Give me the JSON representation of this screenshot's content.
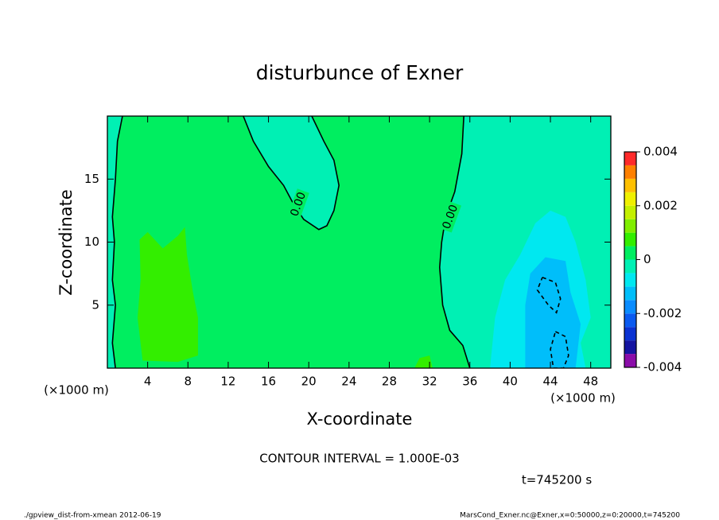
{
  "chart_data": {
    "type": "contour",
    "title": "disturbunce of Exner",
    "xlabel": "X-coordinate",
    "ylabel": "Z-coordinate",
    "x_unit_label": "(×1000 m)",
    "y_unit_label": "(×1000 m)",
    "xlim": [
      0,
      50
    ],
    "ylim": [
      0,
      20
    ],
    "xticks": [
      4,
      8,
      12,
      16,
      20,
      24,
      28,
      32,
      36,
      40,
      44,
      48
    ],
    "yticks": [
      5,
      10,
      15
    ],
    "colorbar": {
      "levels": [
        -0.004,
        -0.0035,
        -0.003,
        -0.0025,
        -0.002,
        -0.0015,
        -0.001,
        -0.0005,
        0,
        0.0005,
        0.001,
        0.0015,
        0.002,
        0.0025,
        0.003,
        0.0035,
        0.004
      ],
      "colors": [
        "#8a0ca8",
        "#1414a0",
        "#0a32d2",
        "#0a5af0",
        "#0a8cff",
        "#00befa",
        "#00e8f0",
        "#00f0b4",
        "#00ee60",
        "#33ee00",
        "#80ee00",
        "#c4f000",
        "#f0f000",
        "#ffc000",
        "#ff8000",
        "#ff2a2a",
        "#ff9a9a"
      ],
      "ticks": [
        -0.004,
        -0.002,
        0,
        0.002,
        0.004
      ]
    },
    "regions": [
      {
        "value": 0,
        "x": [
          0,
          50,
          50,
          0
        ],
        "y": [
          0,
          0,
          20,
          20
        ]
      },
      {
        "value": -0.0005,
        "x": [
          0,
          1.5,
          1,
          0.8,
          0.5,
          0.7,
          0.5,
          0.8,
          0.5,
          0.8,
          0
        ],
        "y": [
          20,
          20,
          18,
          15,
          12,
          10,
          7,
          5,
          2,
          0,
          0
        ]
      },
      {
        "value": -0.0005,
        "x": [
          13.5,
          14.5,
          16,
          17.5,
          18.5,
          19.5,
          21,
          21.8,
          22.5,
          23,
          22.5,
          21.5,
          20.3
        ],
        "y": [
          20,
          18,
          16,
          14.5,
          13,
          11.8,
          11,
          11.3,
          12.5,
          14.5,
          16.5,
          18,
          20
        ]
      },
      {
        "value": -0.0005,
        "x": [
          35.4,
          35.2,
          34.5,
          33.6,
          33.2,
          33,
          33.3,
          34,
          35.3,
          36,
          50,
          50
        ],
        "y": [
          20,
          17,
          14,
          12,
          10,
          8,
          5,
          3,
          1.8,
          0,
          0,
          20
        ]
      },
      {
        "value": -0.001,
        "x": [
          38,
          38.5,
          39.5,
          41,
          42.5,
          44,
          45.5,
          46.5,
          47.5,
          48,
          47,
          47.5
        ],
        "y": [
          0,
          4,
          7,
          9,
          11.5,
          12.5,
          12,
          10,
          7,
          4,
          2,
          0
        ]
      },
      {
        "value": -0.0015,
        "x": [
          41.5,
          41.5,
          42,
          43.5,
          45.5,
          46,
          47,
          46.5
        ],
        "y": [
          0,
          5,
          7.5,
          8.8,
          8.5,
          6,
          3.5,
          0
        ]
      },
      {
        "value": 0.0005,
        "x": [
          3.5,
          3,
          3.3,
          3.2,
          4,
          5.5,
          7,
          7.7,
          7.9,
          8.5,
          9,
          9,
          7
        ],
        "y": [
          0.6,
          4,
          7,
          10.2,
          10.8,
          9.5,
          10.5,
          11.2,
          9,
          6,
          4,
          1,
          0.5
        ]
      },
      {
        "value": 0.0005,
        "x": [
          30.5,
          31,
          32,
          32.3
        ],
        "y": [
          0,
          0.8,
          1,
          0
        ]
      }
    ],
    "contours": [
      {
        "level": 0,
        "x": [
          1.5,
          1,
          0.8,
          0.5,
          0.7,
          0.5,
          0.8,
          0.5,
          0.8
        ],
        "y": [
          20,
          18,
          15,
          12,
          10,
          7,
          5,
          2,
          0
        ]
      },
      {
        "level": 0,
        "label": "0.00",
        "x": [
          13.5,
          14.5,
          16,
          17.5,
          18.5,
          19.5,
          21,
          21.8,
          22.5,
          23,
          22.5,
          21.5,
          20.3
        ],
        "y": [
          20,
          18,
          16,
          14.5,
          13,
          11.8,
          11,
          11.3,
          12.5,
          14.5,
          16.5,
          18,
          20
        ]
      },
      {
        "level": 0,
        "label": "0.00",
        "x": [
          35.4,
          35.2,
          34.5,
          33.6,
          33.2,
          33,
          33.3,
          34,
          35.3,
          36
        ],
        "y": [
          20,
          17,
          14,
          12,
          10,
          8,
          5,
          3,
          1.8,
          0
        ]
      },
      {
        "level": -0.001,
        "x": [
          43.2,
          44.5,
          45,
          44.6,
          43.8,
          42.7,
          43.2
        ],
        "y": [
          7.2,
          6.8,
          5.5,
          4.4,
          5,
          6.2,
          7.2
        ]
      },
      {
        "level": -0.001,
        "x": [
          44.5,
          45.5,
          45.8,
          45.3,
          44.3,
          44,
          44.5
        ],
        "y": [
          2.9,
          2.5,
          1,
          0,
          0,
          1.5,
          2.9
        ]
      }
    ],
    "contour_interval_text": "CONTOUR INTERVAL = 1.000E-03",
    "time_text": "t=745200 s",
    "footer_left": "./gpview_dist-from-xmean  2012-06-19",
    "footer_right": "MarsCond_Exner.nc@Exner,x=0:50000,z=0:20000,t=745200"
  }
}
